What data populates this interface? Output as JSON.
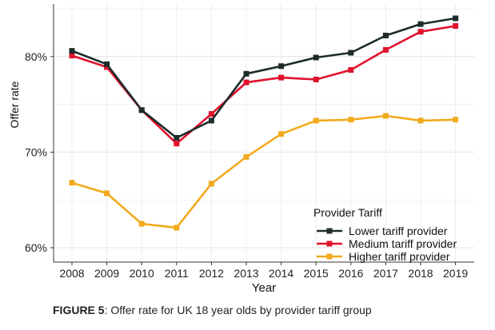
{
  "chart_data": {
    "type": "line",
    "xlabel": "Year",
    "ylabel": "Offer rate",
    "x": [
      2008,
      2009,
      2010,
      2011,
      2012,
      2013,
      2014,
      2015,
      2016,
      2017,
      2018,
      2019
    ],
    "ylim": [
      0.585,
      0.855
    ],
    "yticks": [
      0.6,
      0.7,
      0.8
    ],
    "ytick_labels": [
      "60%",
      "70%",
      "80%"
    ],
    "grid": true,
    "legend_title": "Provider Tariff",
    "legend_position": "bottom-right",
    "series": [
      {
        "name": "Lower tariff provider",
        "color": "#1d2b2b",
        "values": [
          0.806,
          0.792,
          0.744,
          0.715,
          0.733,
          0.782,
          0.79,
          0.799,
          0.804,
          0.822,
          0.834,
          0.84
        ]
      },
      {
        "name": "Medium tariff provider",
        "color": "#e0122c",
        "values": [
          0.801,
          0.789,
          0.744,
          0.709,
          0.74,
          0.773,
          0.778,
          0.776,
          0.786,
          0.807,
          0.826,
          0.832
        ]
      },
      {
        "name": "Higher tariff provider",
        "color": "#f2aa1c",
        "values": [
          0.668,
          0.657,
          0.625,
          0.621,
          0.667,
          0.695,
          0.719,
          0.733,
          0.734,
          0.738,
          0.733,
          0.734
        ]
      }
    ]
  },
  "caption": {
    "label": "FIGURE 5",
    "text": ": Offer rate for UK 18 year olds by provider tariff group"
  }
}
